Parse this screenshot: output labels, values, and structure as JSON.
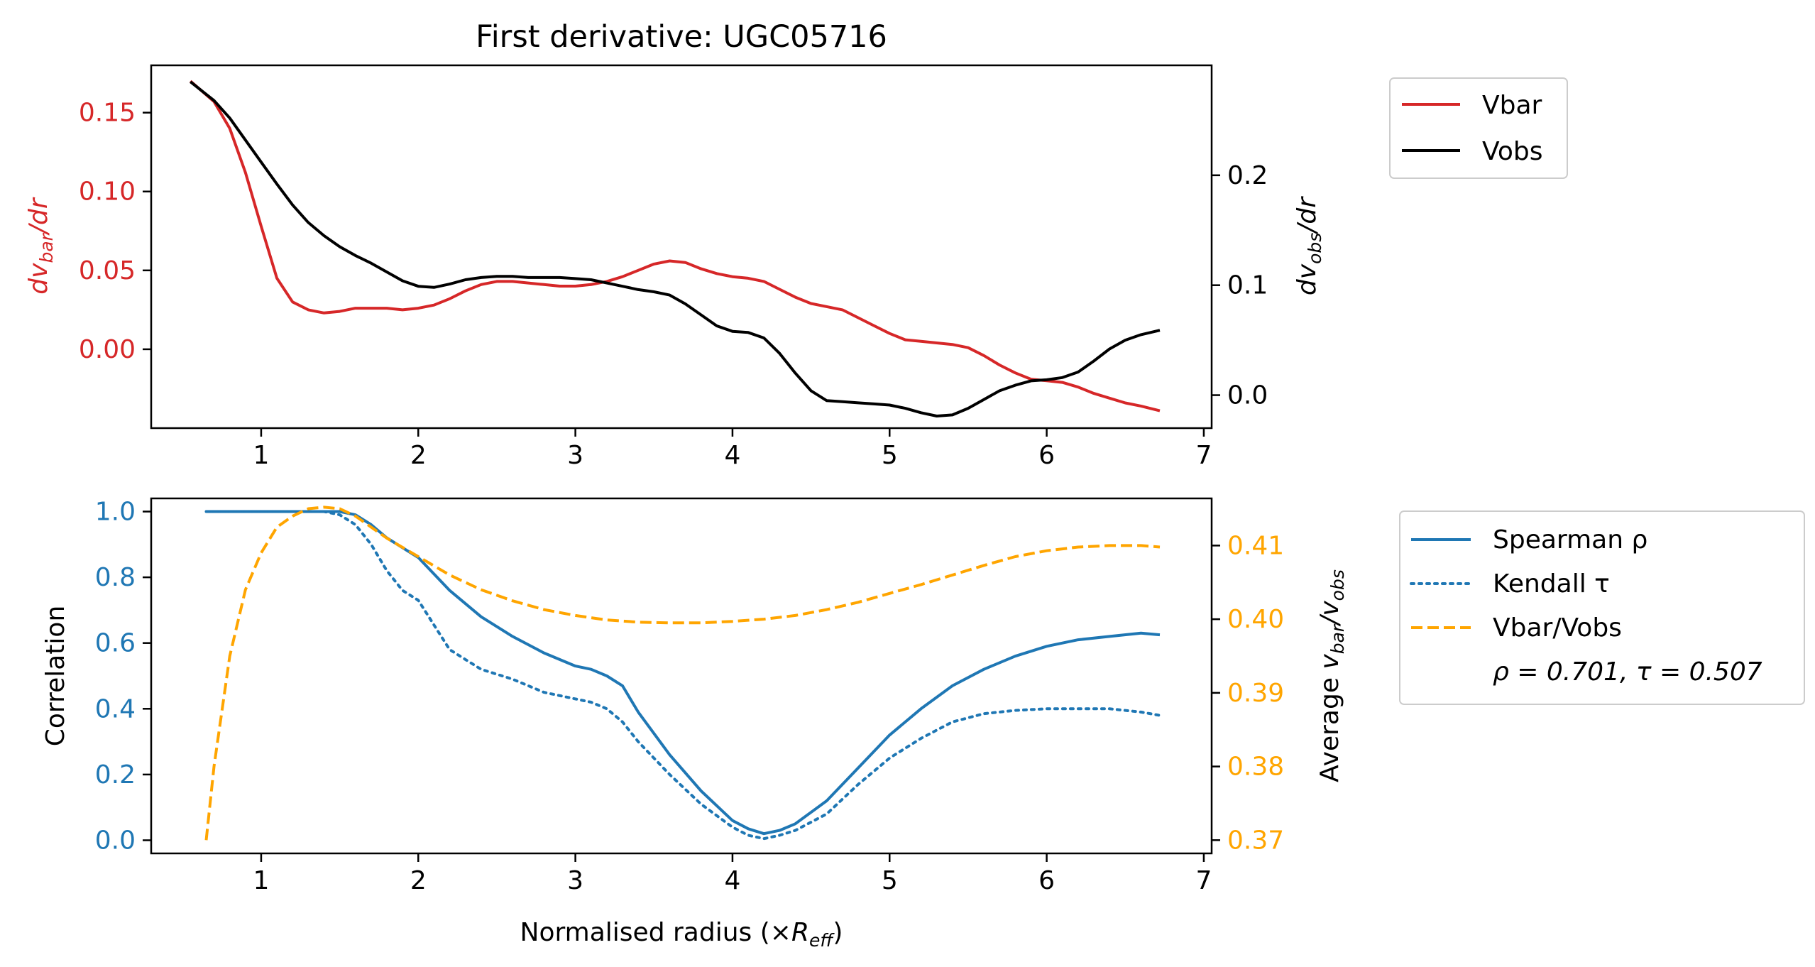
{
  "chart_data": [
    {
      "type": "line",
      "title": "First derivative: UGC05716",
      "xlabel": "",
      "xlim": [
        0.3,
        7.05
      ],
      "xticks": [
        1,
        2,
        3,
        4,
        5,
        6,
        7
      ],
      "y_left": {
        "label_base": "dv",
        "label_sub": "bar",
        "label_tail": "/dr",
        "lim": [
          -0.05,
          0.18
        ],
        "ticks": [
          0.0,
          0.05,
          0.1,
          0.15
        ],
        "tick_labels": [
          "0.00",
          "0.05",
          "0.10",
          "0.15"
        ],
        "color": "#d62728"
      },
      "y_right": {
        "label_base": "dv",
        "label_sub": "obs",
        "label_tail": "/dr",
        "lim": [
          -0.03,
          0.3
        ],
        "ticks": [
          0.0,
          0.1,
          0.2
        ],
        "tick_labels": [
          "0.0",
          "0.1",
          "0.2"
        ],
        "color": "#000000"
      },
      "legend": "outside-top-right",
      "series": [
        {
          "name": "Vbar",
          "axis": "left",
          "color": "#d62728",
          "style": "solid",
          "x": [
            0.55,
            0.7,
            0.8,
            0.9,
            1.0,
            1.1,
            1.2,
            1.3,
            1.4,
            1.5,
            1.6,
            1.7,
            1.8,
            1.9,
            2.0,
            2.1,
            2.2,
            2.3,
            2.4,
            2.5,
            2.6,
            2.7,
            2.8,
            2.9,
            3.0,
            3.1,
            3.2,
            3.3,
            3.4,
            3.5,
            3.6,
            3.7,
            3.8,
            3.9,
            4.0,
            4.1,
            4.2,
            4.3,
            4.4,
            4.5,
            4.6,
            4.7,
            4.8,
            4.9,
            5.0,
            5.1,
            5.2,
            5.3,
            5.4,
            5.5,
            5.6,
            5.7,
            5.8,
            5.9,
            6.0,
            6.1,
            6.2,
            6.3,
            6.4,
            6.5,
            6.6,
            6.72
          ],
          "y": [
            0.17,
            0.157,
            0.14,
            0.112,
            0.078,
            0.045,
            0.03,
            0.025,
            0.023,
            0.024,
            0.026,
            0.026,
            0.026,
            0.025,
            0.026,
            0.028,
            0.032,
            0.037,
            0.041,
            0.043,
            0.043,
            0.042,
            0.041,
            0.04,
            0.04,
            0.041,
            0.043,
            0.046,
            0.05,
            0.054,
            0.056,
            0.055,
            0.051,
            0.048,
            0.046,
            0.045,
            0.043,
            0.038,
            0.033,
            0.029,
            0.027,
            0.025,
            0.02,
            0.015,
            0.01,
            0.006,
            0.005,
            0.004,
            0.003,
            0.001,
            -0.004,
            -0.01,
            -0.015,
            -0.019,
            -0.02,
            -0.021,
            -0.024,
            -0.028,
            -0.031,
            -0.034,
            -0.036,
            -0.039
          ]
        },
        {
          "name": "Vobs",
          "axis": "right",
          "color": "#000000",
          "style": "solid",
          "x": [
            0.55,
            0.7,
            0.8,
            0.9,
            1.0,
            1.1,
            1.2,
            1.3,
            1.4,
            1.5,
            1.6,
            1.7,
            1.8,
            1.9,
            2.0,
            2.1,
            2.2,
            2.3,
            2.4,
            2.5,
            2.6,
            2.7,
            2.8,
            2.9,
            3.0,
            3.1,
            3.2,
            3.3,
            3.4,
            3.5,
            3.6,
            3.7,
            3.8,
            3.9,
            4.0,
            4.1,
            4.2,
            4.3,
            4.4,
            4.5,
            4.6,
            4.7,
            4.8,
            4.9,
            5.0,
            5.1,
            5.2,
            5.3,
            5.4,
            5.5,
            5.6,
            5.7,
            5.8,
            5.9,
            6.0,
            6.1,
            6.2,
            6.3,
            6.4,
            6.5,
            6.6,
            6.72
          ],
          "y": [
            0.285,
            0.268,
            0.252,
            0.232,
            0.212,
            0.192,
            0.173,
            0.157,
            0.145,
            0.135,
            0.127,
            0.12,
            0.112,
            0.104,
            0.099,
            0.098,
            0.101,
            0.105,
            0.107,
            0.108,
            0.108,
            0.107,
            0.107,
            0.107,
            0.106,
            0.105,
            0.102,
            0.099,
            0.096,
            0.094,
            0.091,
            0.083,
            0.073,
            0.063,
            0.058,
            0.057,
            0.052,
            0.038,
            0.02,
            0.004,
            -0.005,
            -0.006,
            -0.007,
            -0.008,
            -0.009,
            -0.012,
            -0.016,
            -0.019,
            -0.018,
            -0.012,
            -0.004,
            0.004,
            0.009,
            0.013,
            0.014,
            0.016,
            0.021,
            0.031,
            0.042,
            0.05,
            0.055,
            0.059
          ]
        }
      ]
    },
    {
      "type": "line",
      "title": "",
      "xlabel_base": "Normalised radius (×",
      "xlabel_var": "R",
      "xlabel_sub": "eff",
      "xlabel_tail": ")",
      "xlim": [
        0.3,
        7.05
      ],
      "xticks": [
        1,
        2,
        3,
        4,
        5,
        6,
        7
      ],
      "y_left": {
        "label": "Correlation",
        "lim": [
          -0.04,
          1.04
        ],
        "ticks": [
          0.0,
          0.2,
          0.4,
          0.6,
          0.8,
          1.0
        ],
        "tick_labels": [
          "0.0",
          "0.2",
          "0.4",
          "0.6",
          "0.8",
          "1.0"
        ],
        "color": "#1f77b4"
      },
      "y_right": {
        "label_base": "Average ",
        "label_num": "v",
        "label_num_sub": "bar",
        "label_den": "v",
        "label_den_sub": "obs",
        "lim": [
          0.3682,
          0.4164
        ],
        "ticks": [
          0.37,
          0.38,
          0.39,
          0.4,
          0.41
        ],
        "tick_labels": [
          "0.37",
          "0.38",
          "0.39",
          "0.40",
          "0.41"
        ],
        "color": "#ffa500"
      },
      "legend": "outside-right",
      "annotation": "ρ = 0.701, τ = 0.507",
      "series": [
        {
          "name": "Spearman ρ",
          "axis": "left",
          "color": "#1f77b4",
          "style": "solid",
          "x": [
            0.65,
            0.8,
            1.0,
            1.2,
            1.4,
            1.5,
            1.6,
            1.7,
            1.8,
            1.9,
            2.0,
            2.2,
            2.4,
            2.6,
            2.8,
            3.0,
            3.1,
            3.2,
            3.3,
            3.4,
            3.6,
            3.8,
            4.0,
            4.1,
            4.2,
            4.3,
            4.4,
            4.6,
            4.8,
            5.0,
            5.2,
            5.4,
            5.6,
            5.8,
            6.0,
            6.2,
            6.4,
            6.6,
            6.72
          ],
          "y": [
            1.0,
            1.0,
            1.0,
            1.0,
            1.0,
            1.0,
            0.99,
            0.96,
            0.92,
            0.89,
            0.86,
            0.76,
            0.68,
            0.62,
            0.57,
            0.53,
            0.52,
            0.5,
            0.47,
            0.39,
            0.26,
            0.15,
            0.06,
            0.035,
            0.02,
            0.03,
            0.05,
            0.12,
            0.22,
            0.32,
            0.4,
            0.47,
            0.52,
            0.56,
            0.59,
            0.61,
            0.62,
            0.63,
            0.625
          ]
        },
        {
          "name": "Kendall τ",
          "axis": "left",
          "color": "#1f77b4",
          "style": "dotted",
          "x": [
            0.65,
            0.8,
            1.0,
            1.2,
            1.4,
            1.5,
            1.6,
            1.7,
            1.8,
            1.9,
            2.0,
            2.2,
            2.4,
            2.6,
            2.8,
            3.0,
            3.1,
            3.2,
            3.3,
            3.4,
            3.6,
            3.8,
            4.0,
            4.1,
            4.2,
            4.3,
            4.4,
            4.6,
            4.8,
            5.0,
            5.2,
            5.4,
            5.6,
            5.8,
            6.0,
            6.2,
            6.4,
            6.6,
            6.72
          ],
          "y": [
            1.0,
            1.0,
            1.0,
            1.0,
            1.0,
            0.99,
            0.96,
            0.9,
            0.82,
            0.76,
            0.73,
            0.58,
            0.52,
            0.49,
            0.45,
            0.43,
            0.42,
            0.4,
            0.36,
            0.3,
            0.2,
            0.11,
            0.04,
            0.015,
            0.005,
            0.015,
            0.03,
            0.08,
            0.17,
            0.25,
            0.31,
            0.36,
            0.385,
            0.395,
            0.4,
            0.4,
            0.4,
            0.39,
            0.38
          ]
        },
        {
          "name": "Vbar/Vobs",
          "axis": "right",
          "color": "#ffa500",
          "style": "dashed",
          "x": [
            0.65,
            0.7,
            0.8,
            0.9,
            1.0,
            1.1,
            1.2,
            1.3,
            1.4,
            1.5,
            1.6,
            1.8,
            2.0,
            2.2,
            2.4,
            2.6,
            2.8,
            3.0,
            3.2,
            3.4,
            3.6,
            3.8,
            4.0,
            4.2,
            4.4,
            4.6,
            4.8,
            5.0,
            5.2,
            5.4,
            5.6,
            5.8,
            6.0,
            6.2,
            6.4,
            6.6,
            6.72
          ],
          "y": [
            0.37,
            0.38,
            0.395,
            0.404,
            0.409,
            0.4125,
            0.414,
            0.415,
            0.4152,
            0.415,
            0.414,
            0.411,
            0.4085,
            0.406,
            0.404,
            0.4025,
            0.4013,
            0.4005,
            0.3999,
            0.3996,
            0.3995,
            0.3995,
            0.3997,
            0.4,
            0.4005,
            0.4013,
            0.4023,
            0.4035,
            0.4047,
            0.406,
            0.4073,
            0.4085,
            0.4093,
            0.4098,
            0.41,
            0.41,
            0.4098
          ]
        }
      ]
    }
  ]
}
